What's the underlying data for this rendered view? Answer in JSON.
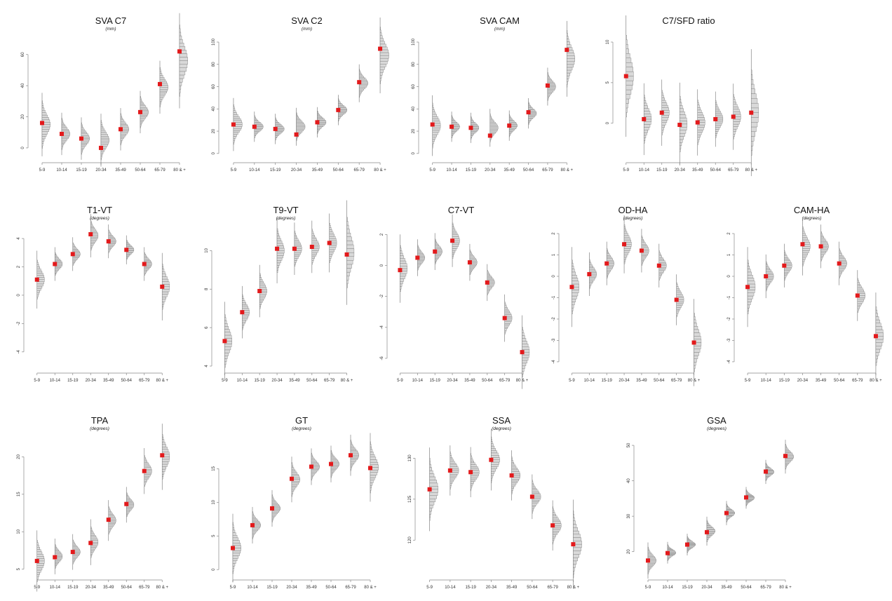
{
  "colors": {
    "point": "#e31a1c",
    "hist_fill": "#d9d9d9",
    "hist_line": "#6e6e6e",
    "axis": "#888888"
  },
  "chart_data": [
    {
      "type": "violin-histogram",
      "title": "SVA C7",
      "subtitle": "(mm)",
      "categories": [
        "5-9",
        "10-14",
        "15-19",
        "20-34",
        "35-49",
        "50-64",
        "65-79",
        "80 & +"
      ],
      "values": [
        16,
        9,
        6,
        0,
        12,
        23,
        41,
        62
      ],
      "dist_center": [
        15,
        9,
        6,
        5,
        12,
        23,
        39,
        56
      ],
      "dist_spread": [
        6,
        4,
        4,
        5,
        4,
        4,
        5,
        9
      ],
      "ylim": [
        -5,
        68
      ],
      "yticks": [
        0,
        20,
        40,
        60
      ]
    },
    {
      "type": "violin-histogram",
      "title": "SVA C2",
      "subtitle": "(mm)",
      "categories": [
        "5-9",
        "10-14",
        "15-19",
        "20-34",
        "35-49",
        "50-64",
        "65-79",
        "80 & +"
      ],
      "values": [
        26,
        24,
        22,
        17,
        28,
        39,
        64,
        94
      ],
      "dist_center": [
        26,
        24,
        22,
        24,
        28,
        39,
        63,
        88
      ],
      "dist_spread": [
        7,
        4,
        4,
        5,
        4,
        4,
        5,
        10
      ],
      "ylim": [
        -2,
        100
      ],
      "yticks": [
        0,
        20,
        40,
        60,
        80,
        100
      ]
    },
    {
      "type": "violin-histogram",
      "title": "SVA CAM",
      "subtitle": "(mm)",
      "categories": [
        "5-9",
        "10-14",
        "15-19",
        "20-34",
        "35-49",
        "50-64",
        "65-79",
        "80 & +"
      ],
      "values": [
        26,
        24,
        23,
        16,
        25,
        37,
        61,
        93
      ],
      "dist_center": [
        25,
        24,
        23,
        23,
        25,
        36,
        60,
        85
      ],
      "dist_spread": [
        8,
        4,
        4,
        5,
        4,
        4,
        5,
        10
      ],
      "ylim": [
        -2,
        100
      ],
      "yticks": [
        0,
        20,
        40,
        60,
        80,
        100
      ]
    },
    {
      "type": "violin-histogram",
      "title": "C7/SFD ratio",
      "subtitle": "",
      "categories": [
        "5-9",
        "10-14",
        "15-19",
        "20-34",
        "35-49",
        "50-64",
        "65-79",
        "80 & +"
      ],
      "values": [
        5.8,
        0.5,
        1.3,
        -0.2,
        0.1,
        0.5,
        0.8,
        1.3
      ],
      "dist_center": [
        5.8,
        0.5,
        1.3,
        -0.1,
        0.1,
        0.5,
        0.8,
        1.3
      ],
      "dist_spread": [
        2.2,
        1.3,
        1.2,
        1.5,
        1.2,
        1.0,
        1.2,
        2.3
      ],
      "ylim": [
        -4,
        10
      ],
      "yticks": [
        0,
        5,
        10
      ]
    },
    {
      "type": "violin-histogram",
      "title": "T1-VT",
      "subtitle": "(degrees)",
      "categories": [
        "5-9",
        "10-14",
        "15-19",
        "20-34",
        "35-49",
        "50-64",
        "65-79",
        "80 & +"
      ],
      "values": [
        1.1,
        2.2,
        2.9,
        4.3,
        3.8,
        3.2,
        2.2,
        0.6
      ],
      "dist_center": [
        1.1,
        2.2,
        2.9,
        4.2,
        3.8,
        3.2,
        2.2,
        0.6
      ],
      "dist_spread": [
        0.6,
        0.35,
        0.35,
        0.45,
        0.35,
        0.3,
        0.35,
        0.7
      ],
      "ylim": [
        -5,
        4.5
      ],
      "yticks": [
        -4,
        -2,
        0,
        2,
        4
      ]
    },
    {
      "type": "violin-histogram",
      "title": "T9-VT",
      "subtitle": "(degrees)",
      "categories": [
        "5-9",
        "10-14",
        "15-19",
        "20-34",
        "35-49",
        "50-64",
        "65-79",
        "80 & +"
      ],
      "values": [
        5.3,
        6.8,
        7.9,
        10.1,
        10.1,
        10.2,
        10.4,
        9.8
      ],
      "dist_center": [
        5.3,
        6.8,
        7.9,
        10.0,
        10.1,
        10.2,
        10.4,
        9.9
      ],
      "dist_spread": [
        0.6,
        0.4,
        0.4,
        0.5,
        0.4,
        0.4,
        0.45,
        0.8
      ],
      "ylim": [
        4,
        11
      ],
      "yticks": [
        4,
        6,
        8,
        10
      ]
    },
    {
      "type": "violin-histogram",
      "title": "C7-VT",
      "subtitle": "",
      "categories": [
        "5-9",
        "10-14",
        "15-19",
        "20-34",
        "35-49",
        "50-64",
        "65-79",
        "80 & +"
      ],
      "values": [
        -0.3,
        0.5,
        0.9,
        1.6,
        0.2,
        -1.1,
        -3.4,
        -5.6
      ],
      "dist_center": [
        -0.2,
        0.5,
        0.9,
        1.6,
        0.2,
        -1.1,
        -3.4,
        -5.6
      ],
      "dist_spread": [
        0.65,
        0.35,
        0.35,
        0.5,
        0.35,
        0.35,
        0.45,
        0.7
      ],
      "ylim": [
        -6.5,
        2.2
      ],
      "yticks": [
        -6,
        -4,
        -2,
        0,
        2
      ]
    },
    {
      "type": "violin-histogram",
      "title": "OD-HA",
      "subtitle": "(degrees)",
      "categories": [
        "5-9",
        "10-14",
        "15-19",
        "20-34",
        "35-49",
        "50-64",
        "65-79",
        "80 & +"
      ],
      "values": [
        -0.5,
        0.1,
        0.6,
        1.5,
        1.2,
        0.5,
        -1.1,
        -3.1
      ],
      "dist_center": [
        -0.5,
        0.1,
        0.6,
        1.5,
        1.2,
        0.5,
        -1.1,
        -3.1
      ],
      "dist_spread": [
        0.55,
        0.3,
        0.3,
        0.4,
        0.3,
        0.3,
        0.35,
        0.6
      ],
      "ylim": [
        -4.2,
        2.1
      ],
      "yticks": [
        -4,
        -3,
        -2,
        -1,
        0,
        1,
        2
      ]
    },
    {
      "type": "violin-histogram",
      "title": "CAM-HA",
      "subtitle": "(degrees)",
      "categories": [
        "5-9",
        "10-14",
        "15-19",
        "20-34",
        "35-49",
        "50-64",
        "65-79",
        "80 & +"
      ],
      "values": [
        -0.5,
        0.0,
        0.5,
        1.5,
        1.4,
        0.6,
        -0.9,
        -2.8
      ],
      "dist_center": [
        -0.5,
        0.0,
        0.5,
        1.4,
        1.4,
        0.6,
        -0.9,
        -2.8
      ],
      "dist_spread": [
        0.55,
        0.3,
        0.3,
        0.4,
        0.3,
        0.3,
        0.35,
        0.6
      ],
      "ylim": [
        -4.2,
        2.1
      ],
      "yticks": [
        -4,
        -3,
        -2,
        -1,
        0,
        1,
        2
      ]
    },
    {
      "type": "violin-histogram",
      "title": "TPA",
      "subtitle": "(degrees)",
      "categories": [
        "5-9",
        "10-14",
        "15-19",
        "20-34",
        "35-49",
        "50-64",
        "65-79",
        "80 & +"
      ],
      "values": [
        6.1,
        6.6,
        7.3,
        8.5,
        11.6,
        13.7,
        18.1,
        20.2
      ],
      "dist_center": [
        6.1,
        6.7,
        7.3,
        8.6,
        11.5,
        13.6,
        18.1,
        20.0
      ],
      "dist_spread": [
        1.2,
        0.7,
        0.7,
        0.9,
        0.8,
        0.7,
        0.9,
        1.3
      ],
      "ylim": [
        4.5,
        22
      ],
      "yticks": [
        5,
        10,
        15,
        20
      ]
    },
    {
      "type": "violin-histogram",
      "title": "GT",
      "subtitle": "(degrees)",
      "categories": [
        "5-9",
        "10-14",
        "15-19",
        "20-34",
        "35-49",
        "50-64",
        "65-79",
        "80 & +"
      ],
      "values": [
        3.2,
        6.6,
        9.1,
        13.5,
        15.3,
        15.7,
        17.0,
        15.1
      ],
      "dist_center": [
        3.2,
        6.6,
        9.1,
        13.4,
        15.3,
        15.7,
        17.0,
        15.2
      ],
      "dist_spread": [
        1.5,
        0.8,
        0.8,
        1.0,
        0.8,
        0.8,
        0.9,
        1.5
      ],
      "ylim": [
        -0.5,
        19
      ],
      "yticks": [
        0,
        5,
        10,
        15
      ]
    },
    {
      "type": "violin-histogram",
      "title": "SSA",
      "subtitle": "(degrees)",
      "categories": [
        "5-9",
        "10-14",
        "15-19",
        "20-34",
        "35-49",
        "50-64",
        "65-79",
        "80 & +"
      ],
      "values": [
        126.2,
        128.5,
        128.3,
        129.8,
        127.9,
        125.3,
        121.8,
        119.5
      ],
      "dist_center": [
        126.2,
        128.5,
        128.3,
        129.8,
        127.9,
        125.3,
        121.8,
        119.5
      ],
      "dist_spread": [
        1.5,
        0.9,
        0.9,
        1.1,
        0.9,
        0.8,
        0.9,
        1.6
      ],
      "ylim": [
        116,
        132
      ],
      "yticks": [
        120,
        125,
        130
      ]
    },
    {
      "type": "violin-histogram",
      "title": "GSA",
      "subtitle": "(degrees)",
      "categories": [
        "5-9",
        "10-14",
        "15-19",
        "20-34",
        "35-49",
        "50-64",
        "65-79",
        "80 & +"
      ],
      "values": [
        17.5,
        19.6,
        22.0,
        25.5,
        30.9,
        35.3,
        42.6,
        47.0
      ],
      "dist_center": [
        17.5,
        19.7,
        22.0,
        25.8,
        30.9,
        35.2,
        42.5,
        46.8
      ],
      "dist_spread": [
        1.5,
        0.9,
        0.9,
        1.2,
        1.0,
        0.9,
        1.0,
        1.4
      ],
      "ylim": [
        14,
        51
      ],
      "yticks": [
        20,
        30,
        40,
        50
      ]
    }
  ]
}
